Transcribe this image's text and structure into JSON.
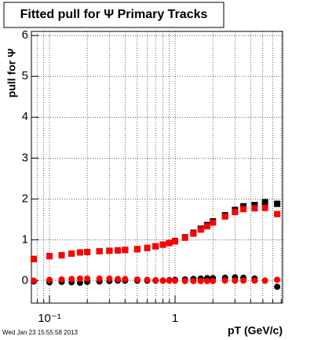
{
  "chart_data": {
    "type": "scatter",
    "title": "Fitted pull for Ψ  Primary Tracks",
    "y_label": "pull for Ψ",
    "x_label": "pT (GeV/c)",
    "footer": "Wed Jan 23 15:55:58 2013",
    "log_x": true,
    "grid": true,
    "xlim": [
      0.0718,
      7.18
    ],
    "ylim": [
      -0.55,
      6.1
    ],
    "xticks": [
      {
        "value": 0.1,
        "label": "10⁻¹"
      },
      1
    ],
    "xminorticks": [
      0.08,
      0.09,
      0.2,
      0.3,
      0.4,
      0.5,
      0.6,
      0.7,
      0.8,
      0.9,
      2,
      3,
      4,
      5,
      6,
      7
    ],
    "yticks": [
      0,
      1,
      2,
      3,
      4,
      5,
      6
    ],
    "x": [
      0.075,
      0.1,
      0.125,
      0.15,
      0.175,
      0.2,
      0.25,
      0.3,
      0.35,
      0.4,
      0.5,
      0.6,
      0.7,
      0.8,
      0.9,
      1.0,
      1.2,
      1.4,
      1.6,
      1.8,
      2.0,
      2.5,
      3.0,
      3.5,
      4.3,
      5.2,
      6.5
    ],
    "series": [
      {
        "color": "#000000",
        "marker": "square",
        "values": [
          0.53,
          0.6,
          0.62,
          0.66,
          0.69,
          0.7,
          0.72,
          0.73,
          0.74,
          0.75,
          0.77,
          0.8,
          0.84,
          0.88,
          0.92,
          0.97,
          1.06,
          1.17,
          1.27,
          1.36,
          1.45,
          1.6,
          1.73,
          1.82,
          1.85,
          1.92,
          1.88
        ]
      },
      {
        "color": "#000000",
        "marker": "circle",
        "values": [
          -0.02,
          -0.04,
          -0.03,
          -0.04,
          -0.05,
          -0.03,
          -0.02,
          -0.01,
          0.0,
          0.0,
          0.0,
          0.0,
          0.0,
          0.0,
          0.01,
          0.02,
          0.03,
          0.04,
          0.05,
          0.06,
          0.06,
          0.07,
          0.08,
          0.07,
          0.05,
          0.0,
          -0.15
        ]
      },
      {
        "color": "#ff0000",
        "marker": "square",
        "values": [
          0.53,
          0.6,
          0.62,
          0.66,
          0.69,
          0.7,
          0.72,
          0.73,
          0.74,
          0.75,
          0.77,
          0.8,
          0.84,
          0.88,
          0.92,
          0.96,
          1.05,
          1.15,
          1.25,
          1.33,
          1.42,
          1.57,
          1.68,
          1.75,
          1.77,
          1.78,
          1.63
        ]
      },
      {
        "color": "#ff0000",
        "marker": "circle",
        "values": [
          0.0,
          0.02,
          0.03,
          0.04,
          0.05,
          0.05,
          0.05,
          0.05,
          0.04,
          0.04,
          0.03,
          0.02,
          0.01,
          0.0,
          0.0,
          0.0,
          -0.01,
          -0.01,
          -0.01,
          -0.01,
          -0.01,
          0.0,
          0.0,
          0.0,
          0.0,
          0.0,
          0.02
        ]
      }
    ]
  }
}
